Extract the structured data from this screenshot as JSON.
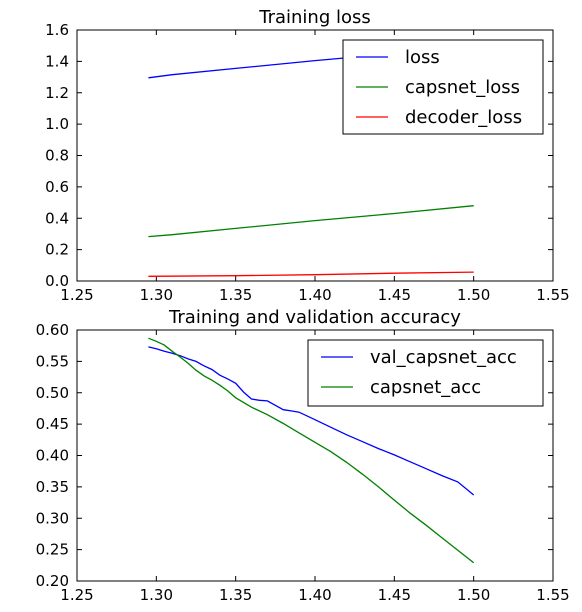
{
  "chart_data": [
    {
      "type": "line",
      "title": "Training loss",
      "xlim": [
        1.25,
        1.55
      ],
      "ylim": [
        0.0,
        1.6
      ],
      "xticks": [
        "1.25",
        "1.30",
        "1.35",
        "1.40",
        "1.45",
        "1.50",
        "1.55"
      ],
      "yticks": [
        "0.0",
        "0.2",
        "0.4",
        "0.6",
        "0.8",
        "1.0",
        "1.2",
        "1.4",
        "1.6"
      ],
      "grid": false,
      "legend_position": "top-right",
      "series": [
        {
          "name": "loss",
          "color": "#0000ff",
          "x": [
            1.295,
            1.31,
            1.35,
            1.4,
            1.45
          ],
          "y": [
            1.295,
            1.315,
            1.355,
            1.405,
            1.45
          ]
        },
        {
          "name": "capsnet_loss",
          "color": "#008000",
          "x": [
            1.295,
            1.31,
            1.35,
            1.4,
            1.45,
            1.5
          ],
          "y": [
            0.283,
            0.295,
            0.335,
            0.385,
            0.43,
            0.48
          ]
        },
        {
          "name": "decoder_loss",
          "color": "#ff0000",
          "x": [
            1.295,
            1.35,
            1.4,
            1.45,
            1.5
          ],
          "y": [
            0.03,
            0.034,
            0.04,
            0.05,
            0.057
          ]
        }
      ]
    },
    {
      "type": "line",
      "title": "Training and validation accuracy",
      "xlim": [
        1.25,
        1.55
      ],
      "ylim": [
        0.2,
        0.6
      ],
      "xticks": [
        "1.25",
        "1.30",
        "1.35",
        "1.40",
        "1.45",
        "1.50",
        "1.55"
      ],
      "yticks": [
        "0.20",
        "0.25",
        "0.30",
        "0.35",
        "0.40",
        "0.45",
        "0.50",
        "0.55",
        "0.60"
      ],
      "grid": false,
      "legend_position": "top-right",
      "series": [
        {
          "name": "val_capsnet_acc",
          "color": "#0000ff",
          "x": [
            1.295,
            1.3,
            1.305,
            1.31,
            1.315,
            1.32,
            1.325,
            1.33,
            1.335,
            1.34,
            1.345,
            1.35,
            1.355,
            1.36,
            1.365,
            1.37,
            1.375,
            1.38,
            1.385,
            1.39,
            1.4,
            1.41,
            1.42,
            1.43,
            1.44,
            1.45,
            1.46,
            1.47,
            1.48,
            1.49,
            1.5
          ],
          "y": [
            0.573,
            0.57,
            0.566,
            0.563,
            0.559,
            0.554,
            0.55,
            0.543,
            0.537,
            0.528,
            0.522,
            0.515,
            0.501,
            0.49,
            0.488,
            0.487,
            0.48,
            0.473,
            0.471,
            0.469,
            0.457,
            0.445,
            0.433,
            0.422,
            0.411,
            0.401,
            0.39,
            0.379,
            0.368,
            0.358,
            0.337
          ]
        },
        {
          "name": "capsnet_acc",
          "color": "#008000",
          "x": [
            1.295,
            1.3,
            1.305,
            1.31,
            1.315,
            1.32,
            1.325,
            1.33,
            1.335,
            1.34,
            1.345,
            1.35,
            1.36,
            1.37,
            1.38,
            1.39,
            1.4,
            1.41,
            1.42,
            1.43,
            1.44,
            1.45,
            1.46,
            1.47,
            1.48,
            1.49,
            1.5
          ],
          "y": [
            0.587,
            0.582,
            0.576,
            0.566,
            0.557,
            0.547,
            0.536,
            0.527,
            0.52,
            0.512,
            0.503,
            0.492,
            0.477,
            0.465,
            0.451,
            0.436,
            0.421,
            0.406,
            0.389,
            0.37,
            0.35,
            0.329,
            0.308,
            0.289,
            0.269,
            0.249,
            0.229
          ]
        }
      ]
    }
  ]
}
